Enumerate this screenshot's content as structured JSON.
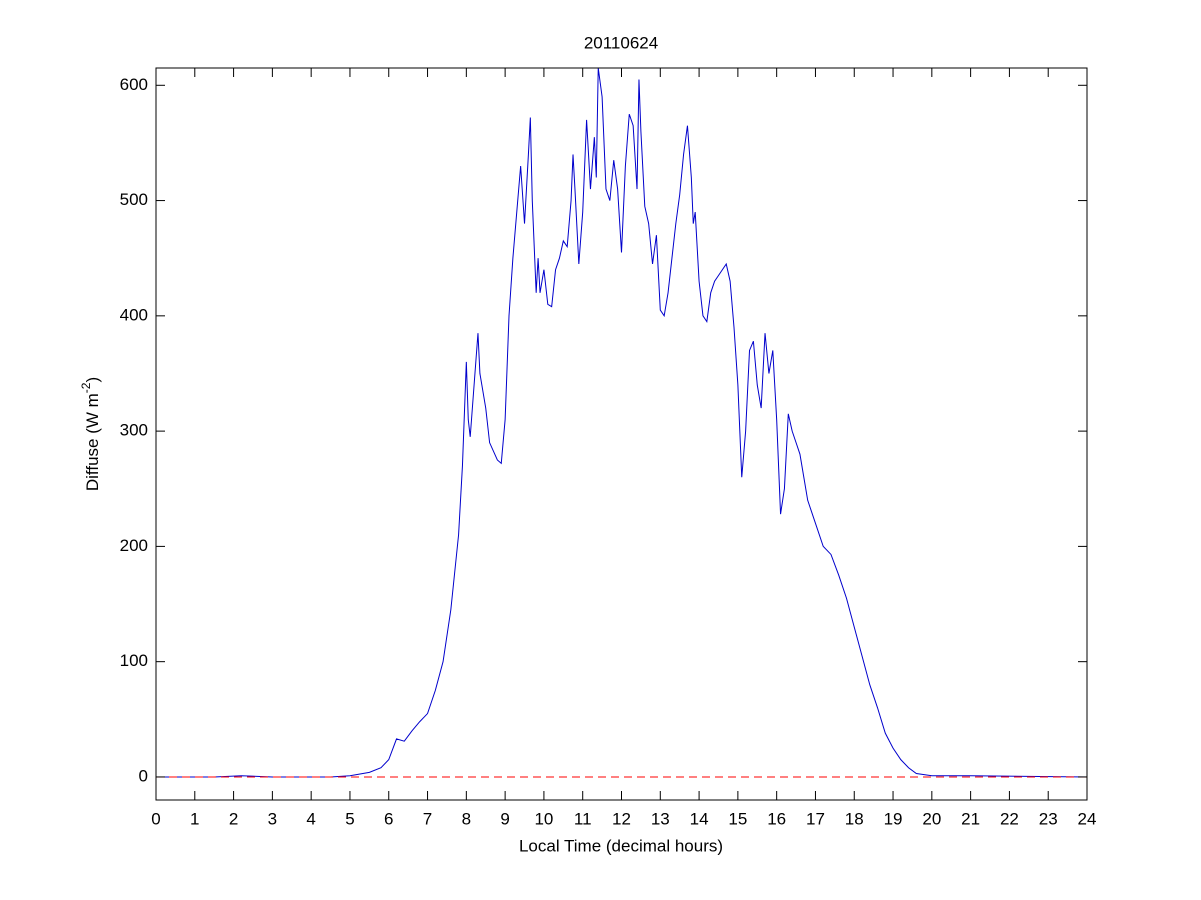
{
  "chart_data": {
    "type": "line",
    "title": "20110624",
    "xlabel": "Local Time (decimal hours)",
    "ylabel": {
      "text": "Diffuse (W m",
      "superscript": "-2",
      "suffix": ")"
    },
    "xlim": [
      0,
      24
    ],
    "ylim": [
      -20,
      615
    ],
    "xticks": [
      0,
      1,
      2,
      3,
      4,
      5,
      6,
      7,
      8,
      9,
      10,
      11,
      12,
      13,
      14,
      15,
      16,
      17,
      18,
      19,
      20,
      21,
      22,
      23,
      24
    ],
    "yticks": [
      0,
      100,
      200,
      300,
      400,
      500,
      600
    ],
    "grid": false,
    "series": [
      {
        "color": "#0000cc",
        "linestyle": "-",
        "x": [
          0,
          1,
          1.5,
          2.2,
          3,
          4,
          4.5,
          5,
          5.5,
          5.8,
          6,
          6.2,
          6.4,
          6.6,
          6.8,
          7,
          7.2,
          7.4,
          7.6,
          7.8,
          7.9,
          8,
          8.05,
          8.1,
          8.2,
          8.3,
          8.35,
          8.5,
          8.6,
          8.8,
          8.9,
          9,
          9.1,
          9.2,
          9.3,
          9.4,
          9.5,
          9.6,
          9.65,
          9.7,
          9.8,
          9.85,
          9.9,
          10,
          10.1,
          10.2,
          10.3,
          10.4,
          10.5,
          10.6,
          10.7,
          10.75,
          10.8,
          10.9,
          11,
          11.1,
          11.2,
          11.3,
          11.35,
          11.4,
          11.5,
          11.6,
          11.7,
          11.8,
          11.9,
          12,
          12.1,
          12.2,
          12.3,
          12.4,
          12.45,
          12.5,
          12.6,
          12.7,
          12.8,
          12.9,
          13,
          13.1,
          13.2,
          13.3,
          13.4,
          13.5,
          13.6,
          13.7,
          13.8,
          13.85,
          13.9,
          14,
          14.1,
          14.2,
          14.3,
          14.4,
          14.5,
          14.6,
          14.7,
          14.8,
          14.9,
          15,
          15.1,
          15.2,
          15.3,
          15.4,
          15.5,
          15.6,
          15.7,
          15.8,
          15.9,
          16,
          16.1,
          16.2,
          16.3,
          16.4,
          16.5,
          16.6,
          16.7,
          16.8,
          16.9,
          17,
          17.2,
          17.4,
          17.6,
          17.8,
          18,
          18.2,
          18.4,
          18.6,
          18.8,
          19,
          19.2,
          19.4,
          19.6,
          19.8,
          20,
          21,
          24
        ],
        "values": [
          0,
          0,
          0,
          1,
          0,
          0,
          0,
          1,
          4,
          8,
          15,
          33,
          31,
          40,
          48,
          55,
          75,
          100,
          145,
          210,
          270,
          360,
          310,
          295,
          340,
          385,
          350,
          320,
          290,
          275,
          272,
          310,
          400,
          450,
          490,
          530,
          480,
          540,
          572,
          500,
          420,
          450,
          420,
          440,
          410,
          408,
          440,
          450,
          465,
          460,
          500,
          540,
          510,
          445,
          490,
          570,
          510,
          555,
          520,
          615,
          590,
          510,
          500,
          535,
          510,
          455,
          530,
          575,
          565,
          510,
          605,
          560,
          495,
          480,
          445,
          470,
          405,
          400,
          420,
          450,
          480,
          505,
          540,
          565,
          520,
          480,
          490,
          430,
          400,
          395,
          420,
          430,
          435,
          440,
          445,
          430,
          390,
          340,
          260,
          300,
          370,
          378,
          340,
          320,
          385,
          350,
          370,
          310,
          228,
          250,
          315,
          300,
          290,
          280,
          260,
          240,
          230,
          220,
          200,
          193,
          175,
          155,
          130,
          105,
          80,
          60,
          38,
          25,
          15,
          8,
          3,
          2,
          1,
          1,
          0
        ]
      },
      {
        "color": "#ff0000",
        "linestyle": "--",
        "x": [
          0,
          24
        ],
        "values": [
          0,
          0
        ]
      }
    ]
  }
}
